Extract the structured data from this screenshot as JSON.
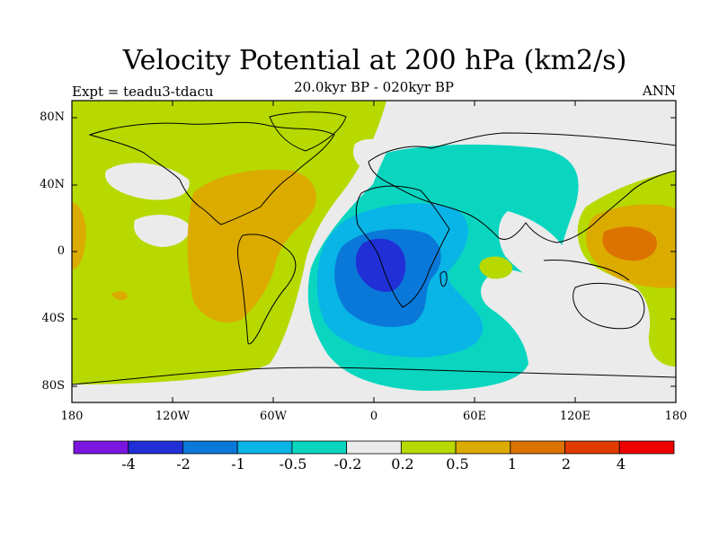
{
  "title": "Velocity Potential at 200 hPa (km2/s)",
  "subtitle": "20.0kyr BP - 020kyr BP",
  "experiment_label": "Expt = teadu3-tdacu",
  "season_label": "ANN",
  "lat_ticks": [
    "80N",
    "40N",
    "0",
    "40S",
    "80S"
  ],
  "lon_ticks": [
    "180",
    "120W",
    "60W",
    "0",
    "60E",
    "120E",
    "180"
  ],
  "colorbar": {
    "labels": [
      "-4",
      "-2",
      "-1",
      "-0.5",
      "-0.2",
      "0.2",
      "0.5",
      "1",
      "2",
      "4"
    ],
    "colors": [
      "#7b16e0",
      "#2030d6",
      "#0a78d8",
      "#09b4e6",
      "#0ad6c0",
      "#ebebeb",
      "#b7d900",
      "#dcab00",
      "#dc7200",
      "#e03a00",
      "#ee0000"
    ]
  },
  "map_colors": {
    "neutral": "#ebebeb",
    "pos_0_2": "#b7d900",
    "pos_0_5": "#dcab00",
    "pos_1": "#dc7200",
    "neg_0_2": "#0ad6c0",
    "neg_0_5": "#09b4e6",
    "neg_1": "#0a78d8",
    "neg_2": "#2030d6"
  }
}
